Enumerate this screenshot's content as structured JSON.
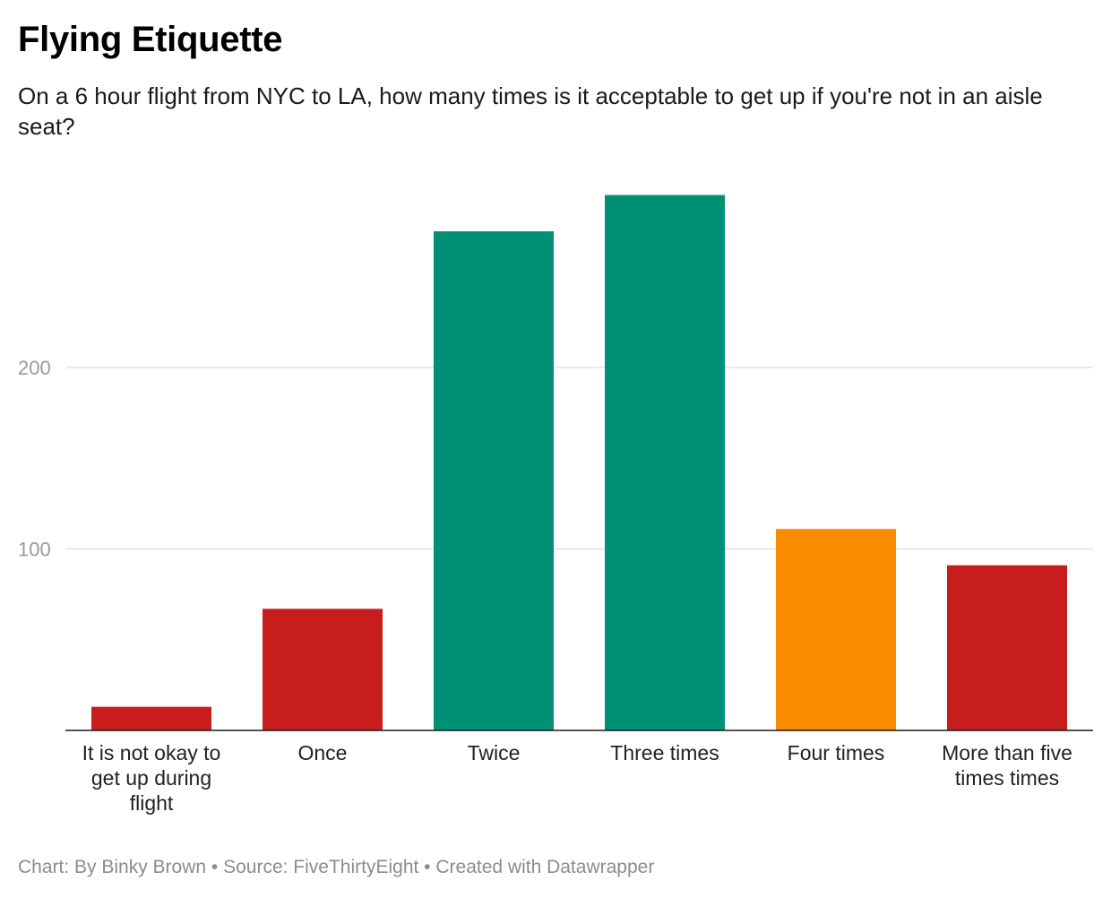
{
  "chart_data": {
    "type": "bar",
    "title": "Flying Etiquette",
    "subtitle": "On a 6 hour flight from NYC to LA, how many times is it acceptable to get up if you're not in an aisle seat?",
    "categories": [
      [
        "It is not okay to",
        "get up during",
        "flight"
      ],
      [
        "Once"
      ],
      [
        "Twice"
      ],
      [
        "Three times"
      ],
      [
        "Four times"
      ],
      [
        "More than five",
        "times times"
      ]
    ],
    "values": [
      13,
      67,
      275,
      295,
      111,
      91
    ],
    "colors": [
      "#c71e1d",
      "#c71e1d",
      "#009076",
      "#009076",
      "#fa8c00",
      "#c71e1d"
    ],
    "yticks": [
      100,
      200
    ],
    "ylim": [
      0,
      300
    ],
    "grid": true,
    "xlabel": "",
    "ylabel": ""
  },
  "footer": {
    "text": "Chart: By Binky Brown • Source: FiveThirtyEight • Created with Datawrapper"
  }
}
